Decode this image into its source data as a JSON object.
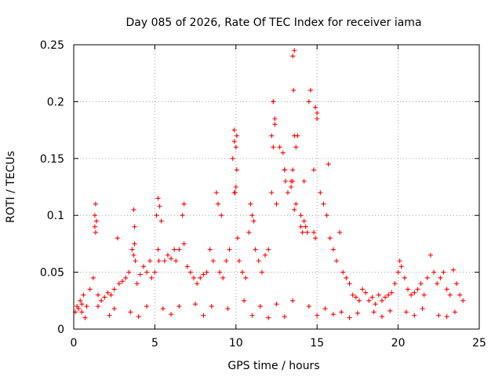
{
  "chart_data": {
    "type": "scatter",
    "title": "Day 085 of 2026, Rate Of TEC Index for receiver iama",
    "xlabel": "GPS time / hours",
    "ylabel": "ROTI / TECUs",
    "xlim": [
      0,
      25
    ],
    "ylim": [
      0,
      0.25
    ],
    "xticks": [
      "0",
      "5",
      "10",
      "15",
      "20",
      "25"
    ],
    "yticks": [
      "0",
      "0.05",
      "0.1",
      "0.15",
      "0.2",
      "0.25"
    ],
    "grid": true,
    "legend": "none",
    "marker": "+",
    "color": "#ff0000",
    "x": [
      0.1,
      0.2,
      0.3,
      0.4,
      0.5,
      0.6,
      0.8,
      1.0,
      1.2,
      1.3,
      1.35,
      1.4,
      1.5,
      1.7,
      1.9,
      2.1,
      2.3,
      2.5,
      2.7,
      2.8,
      3.0,
      3.2,
      3.4,
      3.6,
      3.7,
      3.75,
      3.8,
      3.9,
      4.1,
      4.3,
      4.5,
      4.7,
      4.8,
      5.0,
      5.1,
      5.2,
      5.3,
      5.4,
      5.6,
      5.8,
      6.0,
      6.2,
      6.3,
      6.5,
      6.7,
      6.8,
      7.0,
      7.2,
      7.4,
      7.6,
      7.8,
      8.0,
      8.2,
      8.4,
      8.6,
      8.8,
      8.9,
      9.0,
      9.2,
      9.4,
      9.6,
      9.8,
      9.9,
      10.0,
      10.05,
      10.1,
      10.2,
      10.4,
      10.6,
      10.8,
      10.9,
      11.0,
      11.2,
      11.4,
      11.6,
      11.8,
      12.0,
      12.2,
      12.3,
      12.4,
      12.5,
      12.7,
      12.9,
      13.0,
      13.2,
      13.4,
      13.5,
      13.6,
      13.7,
      13.8,
      14.0,
      14.2,
      14.3,
      14.4,
      14.5,
      14.6,
      14.8,
      15.0,
      15.2,
      15.4,
      15.6,
      15.7,
      15.8,
      16.0,
      16.2,
      16.4,
      16.6,
      16.8,
      17.0,
      17.2,
      17.4,
      17.6,
      17.8,
      18.0,
      18.2,
      18.4,
      18.6,
      18.8,
      19.0,
      19.2,
      19.4,
      19.6,
      19.8,
      20.0,
      20.1,
      20.2,
      20.4,
      20.6,
      20.8,
      21.0,
      21.2,
      21.4,
      21.6,
      21.8,
      22.0,
      22.2,
      22.4,
      22.6,
      22.8,
      23.0,
      23.2,
      23.4,
      23.6,
      23.8,
      24.0,
      0.5,
      1.5,
      2.5,
      3.5,
      4.5,
      5.5,
      6.5,
      7.5,
      8.5,
      9.5,
      10.5,
      11.5,
      12.5,
      13.5,
      14.5,
      15.5,
      16.5,
      17.5,
      18.5,
      19.5,
      20.5,
      21.5,
      22.5,
      23.5,
      3.7,
      3.75,
      5.2,
      5.25,
      6.8,
      9.1,
      9.9,
      10.0,
      12.3,
      12.4,
      13.4,
      13.5,
      13.6,
      13.7,
      14.0,
      14.1,
      14.2,
      14.8,
      14.9,
      1.3,
      1.35,
      0.7,
      2.2,
      4.0,
      6.0,
      8.0,
      11.0,
      12.0,
      13.0,
      15.0,
      16.0,
      17.0,
      19.0,
      21.0,
      23.0,
      13.5,
      13.55,
      13.6,
      14.9,
      15.0,
      12.2,
      12.3,
      13.0,
      13.05,
      9.9,
      10.05,
      9.95,
      11.1
    ],
    "y": [
      0.015,
      0.02,
      0.018,
      0.025,
      0.022,
      0.03,
      0.02,
      0.035,
      0.045,
      0.1,
      0.11,
      0.095,
      0.03,
      0.025,
      0.028,
      0.032,
      0.03,
      0.035,
      0.08,
      0.04,
      0.042,
      0.045,
      0.05,
      0.07,
      0.105,
      0.09,
      0.06,
      0.04,
      0.048,
      0.055,
      0.05,
      0.06,
      0.045,
      0.05,
      0.1,
      0.115,
      0.108,
      0.095,
      0.06,
      0.065,
      0.062,
      0.07,
      0.06,
      0.07,
      0.1,
      0.11,
      0.055,
      0.05,
      0.045,
      0.04,
      0.045,
      0.048,
      0.05,
      0.07,
      0.06,
      0.12,
      0.11,
      0.05,
      0.045,
      0.06,
      0.07,
      0.15,
      0.175,
      0.16,
      0.14,
      0.08,
      0.06,
      0.05,
      0.045,
      0.085,
      0.11,
      0.1,
      0.07,
      0.06,
      0.05,
      0.065,
      0.07,
      0.12,
      0.2,
      0.185,
      0.11,
      0.16,
      0.155,
      0.14,
      0.12,
      0.13,
      0.14,
      0.245,
      0.16,
      0.17,
      0.1,
      0.13,
      0.09,
      0.085,
      0.2,
      0.21,
      0.14,
      0.19,
      0.12,
      0.11,
      0.1,
      0.145,
      0.08,
      0.07,
      0.06,
      0.085,
      0.05,
      0.045,
      0.04,
      0.03,
      0.028,
      0.025,
      0.035,
      0.032,
      0.025,
      0.028,
      0.022,
      0.03,
      0.025,
      0.028,
      0.03,
      0.032,
      0.04,
      0.05,
      0.06,
      0.055,
      0.045,
      0.035,
      0.03,
      0.032,
      0.035,
      0.04,
      0.03,
      0.045,
      0.065,
      0.05,
      0.04,
      0.045,
      0.05,
      0.035,
      0.03,
      0.052,
      0.04,
      0.03,
      0.025,
      0.015,
      0.02,
      0.018,
      0.015,
      0.02,
      0.018,
      0.02,
      0.022,
      0.02,
      0.018,
      0.025,
      0.02,
      0.022,
      0.025,
      0.02,
      0.018,
      0.015,
      0.014,
      0.015,
      0.016,
      0.015,
      0.018,
      0.012,
      0.015,
      0.065,
      0.075,
      0.07,
      0.06,
      0.075,
      0.1,
      0.12,
      0.125,
      0.16,
      0.18,
      0.125,
      0.13,
      0.105,
      0.11,
      0.09,
      0.085,
      0.095,
      0.085,
      0.08,
      0.09,
      0.085,
      0.01,
      0.012,
      0.011,
      0.013,
      0.012,
      0.012,
      0.01,
      0.011,
      0.012,
      0.013,
      0.01,
      0.011,
      0.012,
      0.011,
      0.24,
      0.21,
      0.17,
      0.195,
      0.185,
      0.17,
      0.2,
      0.14,
      0.13,
      0.165,
      0.17,
      0.12,
      0.095
    ]
  }
}
